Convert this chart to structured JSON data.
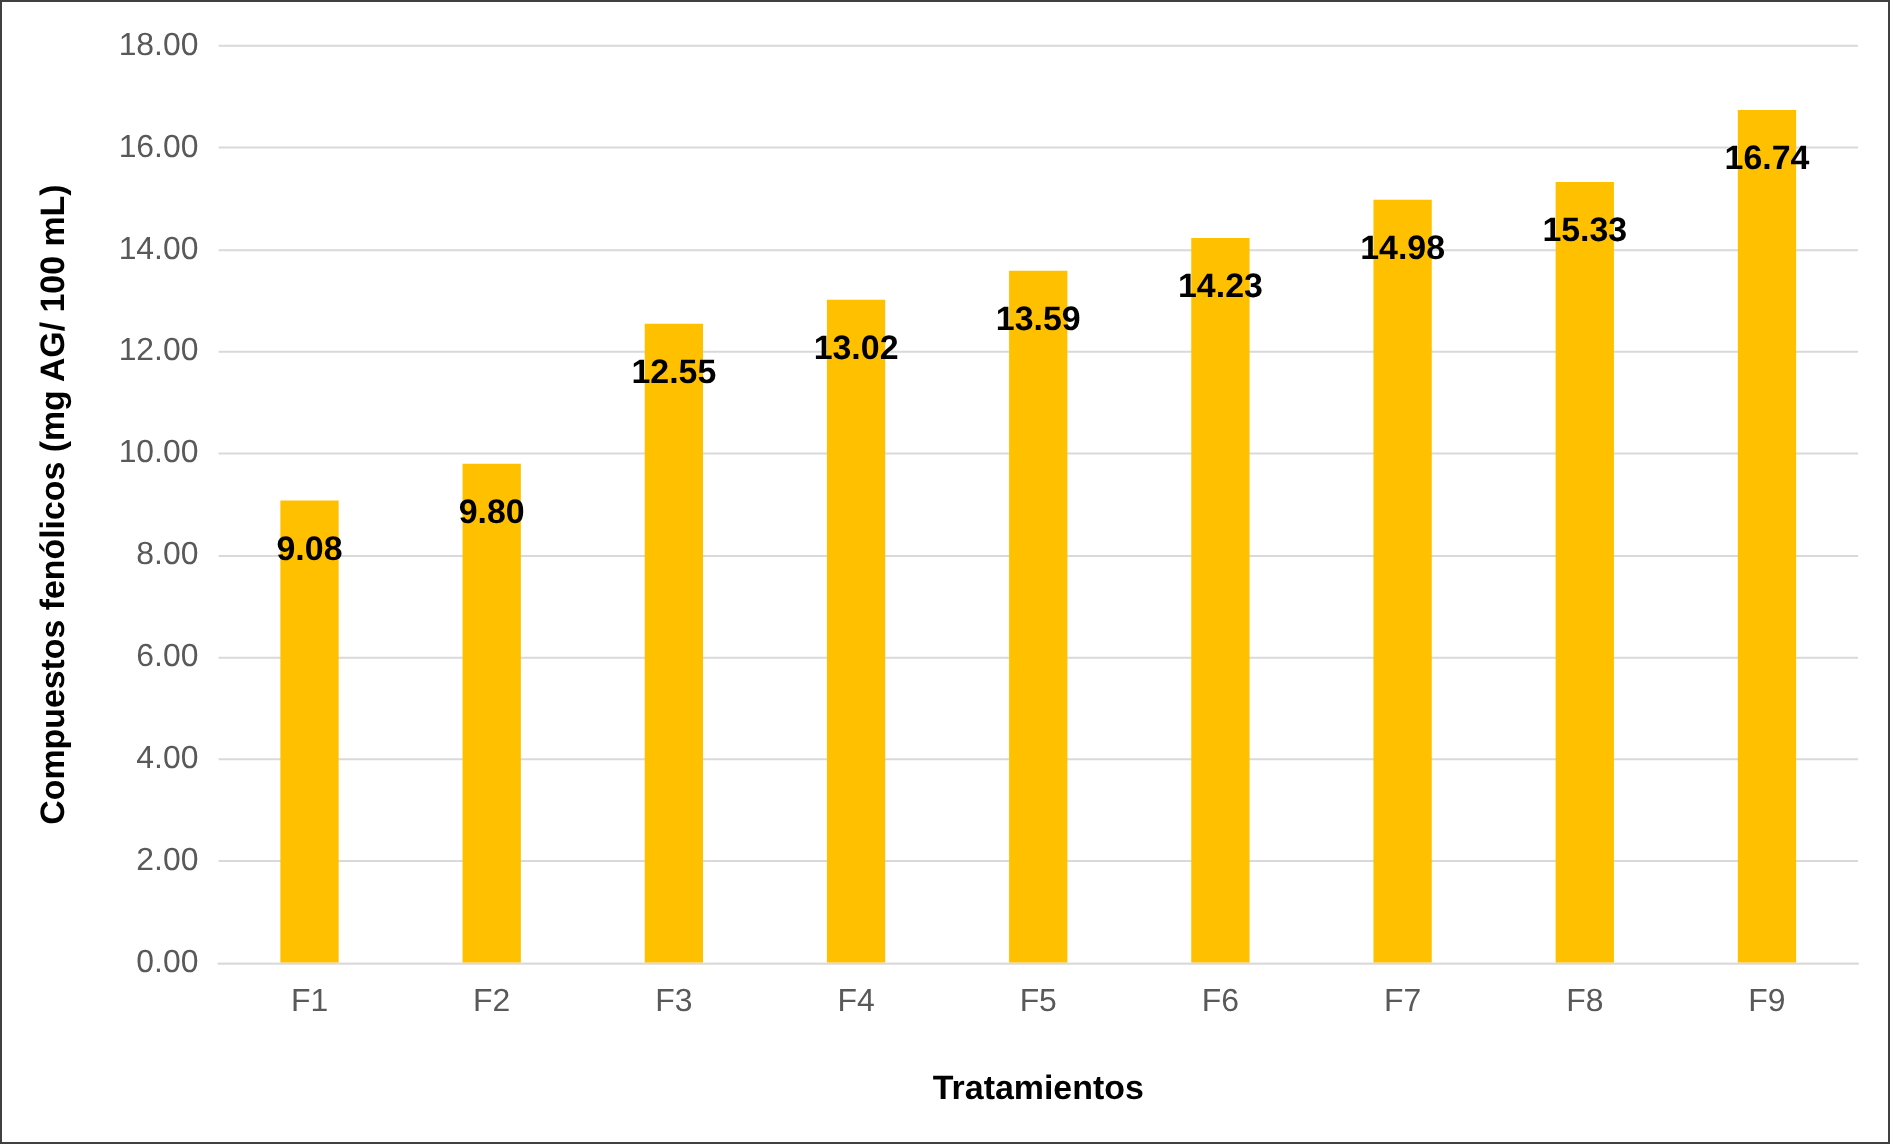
{
  "chart_data": {
    "type": "bar",
    "xlabel": "Tratamientos",
    "ylabel": "Compuestos fenólicos (mg AG/ 100 mL)",
    "categories": [
      "F1",
      "F2",
      "F3",
      "F4",
      "F5",
      "F6",
      "F7",
      "F8",
      "F9"
    ],
    "values": [
      9.08,
      9.8,
      12.55,
      13.02,
      13.59,
      14.23,
      14.98,
      15.33,
      16.74
    ],
    "value_labels": [
      "9.08",
      "9.80",
      "12.55",
      "13.02",
      "13.59",
      "14.23",
      "14.98",
      "15.33",
      "16.74"
    ],
    "color": "#ffc000",
    "ylim": [
      0,
      18
    ],
    "yticks": [
      {
        "value": 0,
        "label": "0.00"
      },
      {
        "value": 2,
        "label": "2.00"
      },
      {
        "value": 4,
        "label": "4.00"
      },
      {
        "value": 6,
        "label": "6.00"
      },
      {
        "value": 8,
        "label": "8.00"
      },
      {
        "value": 10,
        "label": "10.00"
      },
      {
        "value": 12,
        "label": "12.00"
      },
      {
        "value": 14,
        "label": "14.00"
      },
      {
        "value": 16,
        "label": "16.00"
      },
      {
        "value": 18,
        "label": "18.00"
      }
    ],
    "grid": "y",
    "legend": false
  }
}
